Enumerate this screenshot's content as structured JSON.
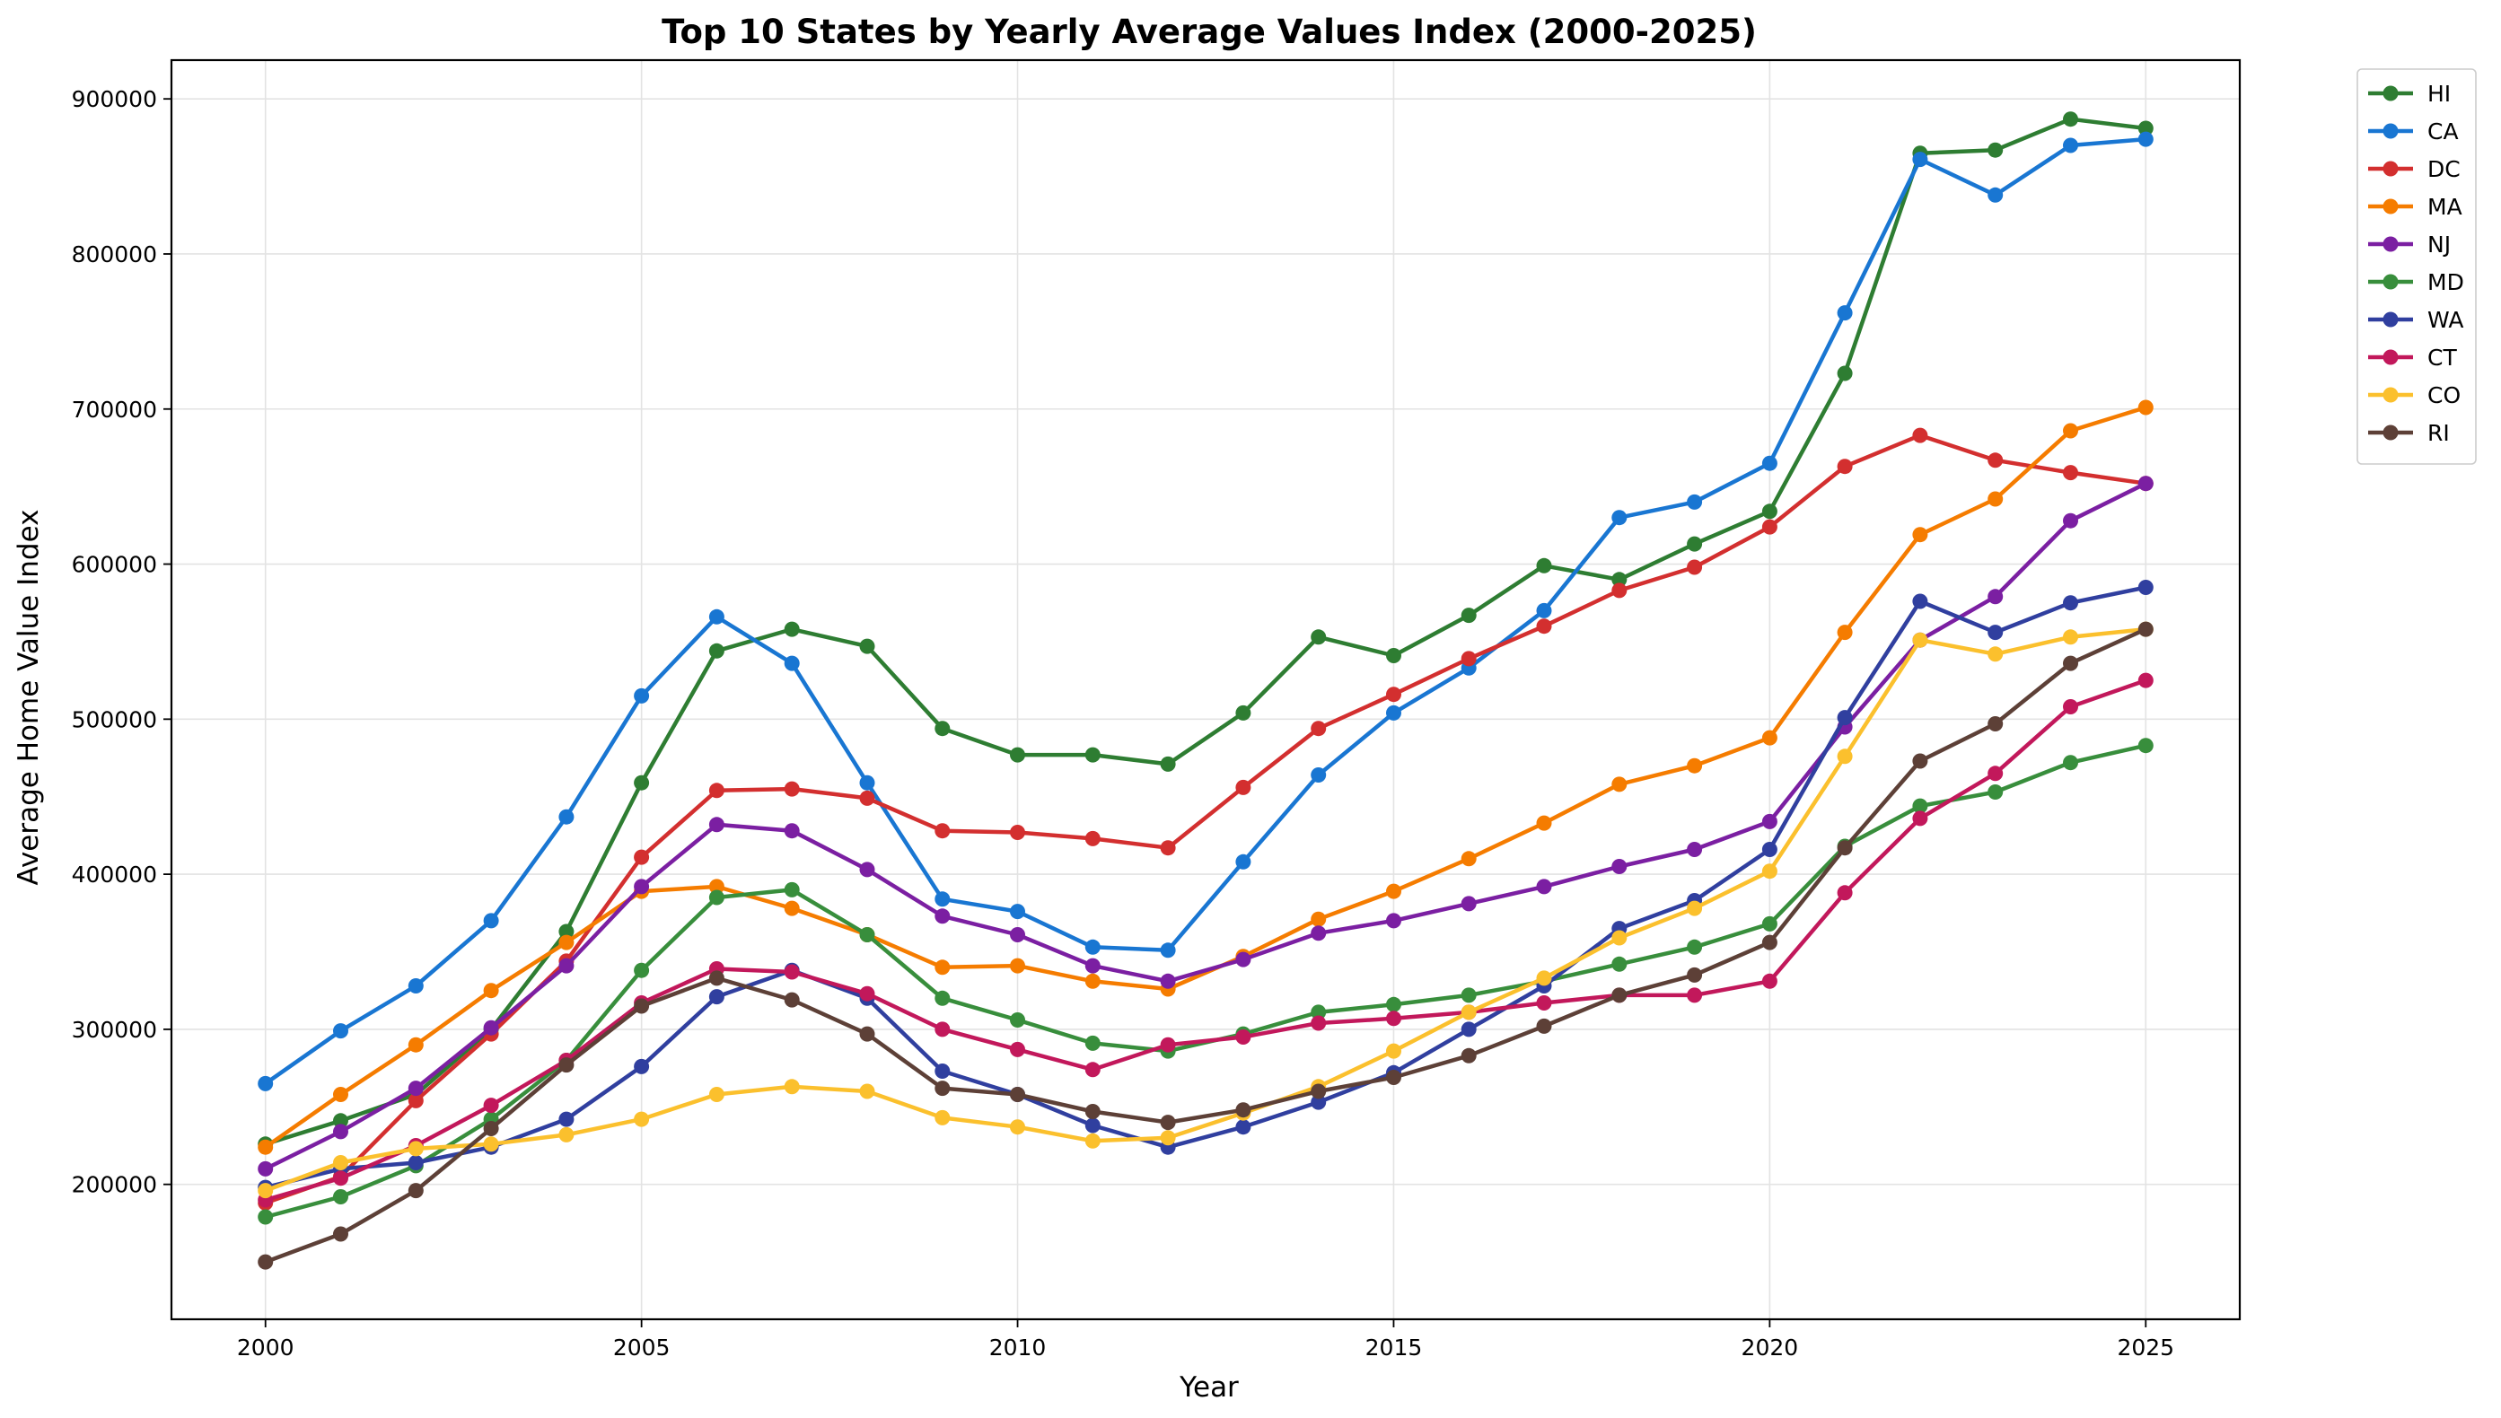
{
  "chart_data": {
    "type": "line",
    "title": "Top 10 States by Yearly Average Values Index (2000-2025)",
    "xlabel": "Year",
    "ylabel": "Average Home Value Index",
    "xlim": [
      1998.75,
      2026.25
    ],
    "ylim": [
      113000,
      925000
    ],
    "x_ticks": [
      2000,
      2005,
      2010,
      2015,
      2020,
      2025
    ],
    "y_ticks": [
      200000,
      300000,
      400000,
      500000,
      600000,
      700000,
      800000,
      900000
    ],
    "grid": true,
    "legend_position": "outside top-right",
    "x": [
      2000,
      2001,
      2002,
      2003,
      2004,
      2005,
      2006,
      2007,
      2008,
      2009,
      2010,
      2011,
      2012,
      2013,
      2014,
      2015,
      2016,
      2017,
      2018,
      2019,
      2020,
      2021,
      2022,
      2023,
      2024,
      2025
    ],
    "series": [
      {
        "name": "HI",
        "color": "#2e7d32",
        "values": [
          226000,
          241000,
          258000,
          300000,
          363000,
          459000,
          544000,
          558000,
          547000,
          494000,
          477000,
          477000,
          471000,
          504000,
          553000,
          541000,
          567000,
          599000,
          590000,
          613000,
          634000,
          723000,
          865000,
          867000,
          887000,
          881000
        ]
      },
      {
        "name": "CA",
        "color": "#1976d2",
        "values": [
          265000,
          299000,
          328000,
          370000,
          437000,
          515000,
          566000,
          536000,
          459000,
          384000,
          376000,
          353000,
          351000,
          408000,
          464000,
          504000,
          533000,
          570000,
          630000,
          640000,
          665000,
          762000,
          861000,
          838000,
          870000,
          874000
        ]
      },
      {
        "name": "DC",
        "color": "#d32f2f",
        "values": [
          188000,
          205000,
          254000,
          297000,
          344000,
          411000,
          454000,
          455000,
          449000,
          428000,
          427000,
          423000,
          417000,
          456000,
          494000,
          516000,
          539000,
          560000,
          583000,
          598000,
          624000,
          663000,
          683000,
          667000,
          659000,
          652000
        ]
      },
      {
        "name": "MA",
        "color": "#f57c00",
        "values": [
          224000,
          258000,
          290000,
          325000,
          356000,
          389000,
          392000,
          378000,
          361000,
          340000,
          341000,
          331000,
          326000,
          347000,
          371000,
          389000,
          410000,
          433000,
          458000,
          470000,
          488000,
          556000,
          619000,
          642000,
          686000,
          701000
        ]
      },
      {
        "name": "NJ",
        "color": "#7b1fa2",
        "values": [
          210000,
          234000,
          262000,
          301000,
          341000,
          392000,
          432000,
          428000,
          403000,
          373000,
          361000,
          341000,
          331000,
          345000,
          362000,
          370000,
          381000,
          392000,
          405000,
          416000,
          434000,
          495000,
          551000,
          579000,
          628000,
          652000
        ]
      },
      {
        "name": "MD",
        "color": "#388e3c",
        "values": [
          179000,
          192000,
          212000,
          242000,
          280000,
          338000,
          385000,
          390000,
          361000,
          320000,
          306000,
          291000,
          286000,
          297000,
          311000,
          316000,
          322000,
          331000,
          342000,
          353000,
          368000,
          418000,
          444000,
          453000,
          472000,
          483000
        ]
      },
      {
        "name": "WA",
        "color": "#303f9f",
        "values": [
          198000,
          210000,
          214000,
          224000,
          242000,
          276000,
          321000,
          338000,
          320000,
          273000,
          258000,
          238000,
          224000,
          237000,
          253000,
          272000,
          300000,
          328000,
          365000,
          383000,
          416000,
          501000,
          576000,
          556000,
          575000,
          585000
        ]
      },
      {
        "name": "CT",
        "color": "#c2185b",
        "values": [
          190000,
          204000,
          225000,
          251000,
          280000,
          317000,
          339000,
          337000,
          323000,
          300000,
          287000,
          274000,
          290000,
          295000,
          304000,
          307000,
          311000,
          317000,
          322000,
          322000,
          331000,
          388000,
          436000,
          465000,
          508000,
          525000
        ]
      },
      {
        "name": "CO",
        "color": "#fbc02d",
        "values": [
          196000,
          214000,
          223000,
          226000,
          232000,
          242000,
          258000,
          263000,
          260000,
          243000,
          237000,
          228000,
          230000,
          246000,
          263000,
          286000,
          311000,
          333000,
          359000,
          378000,
          402000,
          476000,
          551000,
          542000,
          553000,
          558000
        ]
      },
      {
        "name": "RI",
        "color": "#5d4037",
        "values": [
          150000,
          168000,
          196000,
          236000,
          277000,
          315000,
          333000,
          319000,
          297000,
          262000,
          258000,
          247000,
          240000,
          248000,
          260000,
          269000,
          283000,
          302000,
          322000,
          335000,
          356000,
          417000,
          473000,
          497000,
          536000,
          558000
        ]
      }
    ]
  }
}
